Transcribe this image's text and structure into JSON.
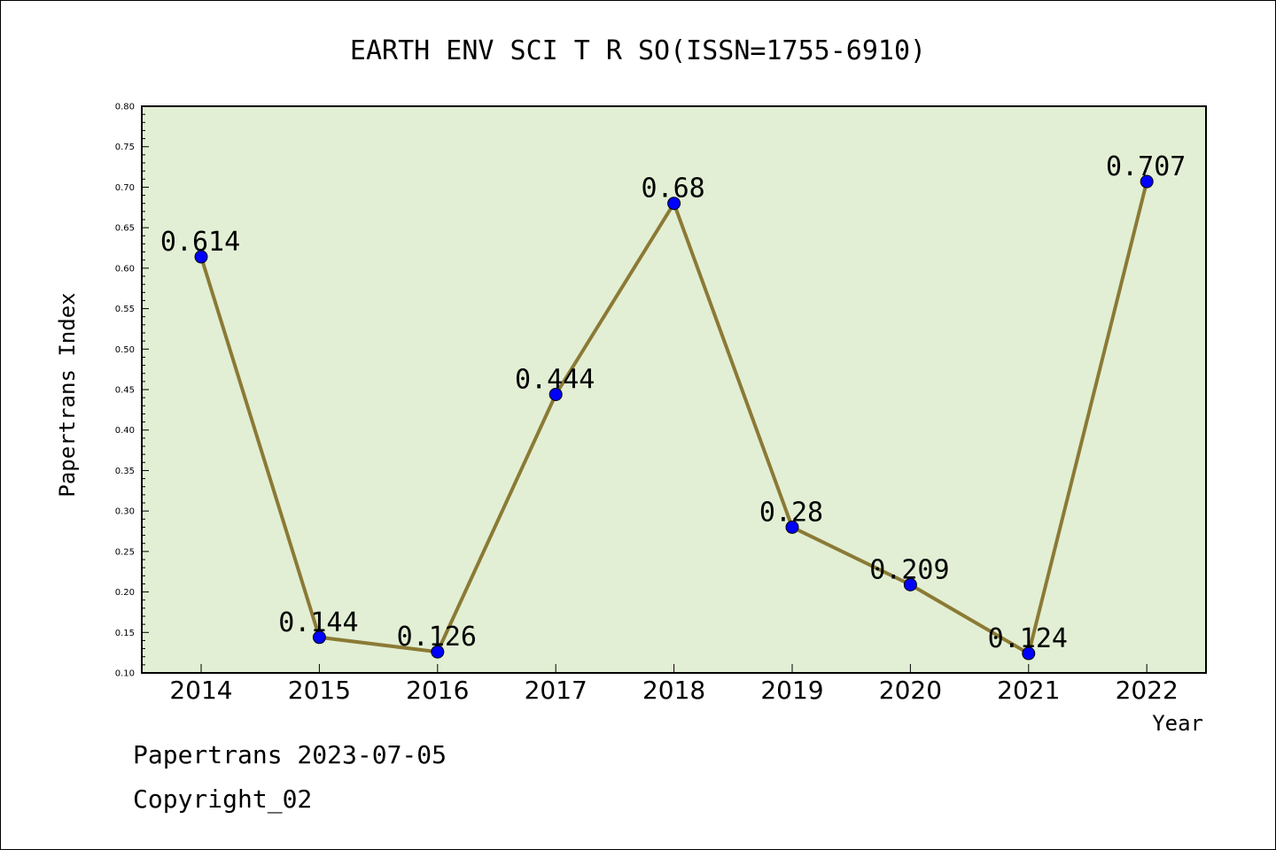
{
  "chart_data": {
    "type": "line",
    "title": "EARTH ENV SCI T R SO(ISSN=1755-6910)",
    "xlabel": "Year",
    "ylabel": "Papertrans Index",
    "x": [
      "2014",
      "2015",
      "2016",
      "2017",
      "2018",
      "2019",
      "2020",
      "2021",
      "2022"
    ],
    "values": [
      0.614,
      0.144,
      0.126,
      0.444,
      0.68,
      0.28,
      0.209,
      0.124,
      0.707
    ],
    "data_labels": [
      "0.614",
      "0.144",
      "0.126",
      "0.444",
      "0.68",
      "0.28",
      "0.209",
      "0.124",
      "0.707"
    ],
    "ylim": [
      0.1,
      0.8
    ],
    "yticks": [
      "0.10",
      "0.15",
      "0.20",
      "0.25",
      "0.30",
      "0.35",
      "0.40",
      "0.45",
      "0.50",
      "0.55",
      "0.60",
      "0.65",
      "0.70",
      "0.75",
      "0.80"
    ],
    "grid": false,
    "colors": {
      "plot_background": "#e2efd4",
      "line": "#8b7a35",
      "marker": "#0000ff"
    }
  },
  "footer": {
    "line1": "Papertrans 2023-07-05",
    "line2": "Copyright_02"
  }
}
